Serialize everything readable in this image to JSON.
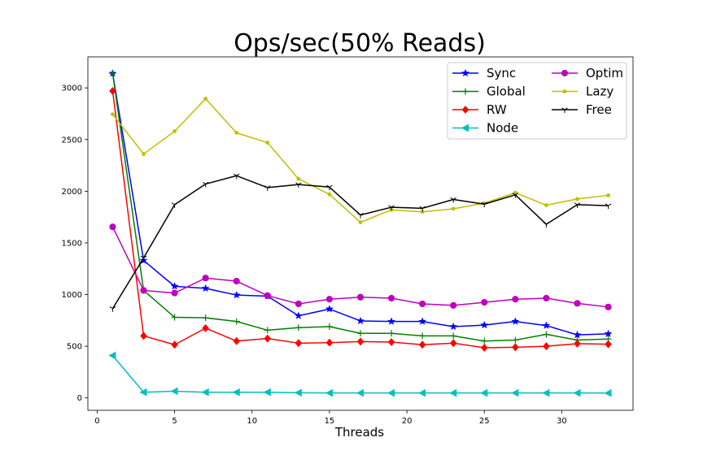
{
  "chart_data": {
    "type": "line",
    "title": "Ops/sec(50% Reads)",
    "xlabel": "Threads",
    "ylabel": "",
    "xlim": [
      -0.6,
      34.6
    ],
    "ylim": [
      -120,
      3300
    ],
    "xticks": [
      0,
      5,
      10,
      15,
      20,
      25,
      30
    ],
    "yticks": [
      0,
      500,
      1000,
      1500,
      2000,
      2500,
      3000
    ],
    "grid": false,
    "legend": {
      "position": "top-right",
      "columns": 2
    },
    "x": [
      1,
      3,
      5,
      7,
      9,
      11,
      13,
      15,
      17,
      19,
      21,
      23,
      25,
      27,
      29,
      31,
      33
    ],
    "series": [
      {
        "name": "Sync",
        "color": "#0000ff",
        "marker": "star",
        "values": [
          3140,
          1330,
          1080,
          1060,
          995,
          985,
          795,
          860,
          745,
          740,
          740,
          690,
          705,
          740,
          700,
          610,
          620
        ]
      },
      {
        "name": "Global",
        "color": "#008000",
        "marker": "plus",
        "values": [
          3140,
          1040,
          780,
          775,
          740,
          655,
          680,
          690,
          625,
          625,
          600,
          600,
          550,
          560,
          615,
          560,
          570
        ]
      },
      {
        "name": "RW",
        "color": "#ff0000",
        "marker": "diamond",
        "values": [
          2970,
          600,
          515,
          675,
          550,
          575,
          530,
          535,
          545,
          540,
          515,
          530,
          485,
          490,
          500,
          525,
          520
        ]
      },
      {
        "name": "Node",
        "color": "#00bfbf",
        "marker": "triangle-left",
        "values": [
          410,
          55,
          65,
          55,
          55,
          55,
          50,
          48,
          48,
          48,
          48,
          48,
          48,
          48,
          48,
          48,
          47
        ]
      },
      {
        "name": "Optim",
        "color": "#bf00bf",
        "marker": "circle",
        "values": [
          1655,
          1040,
          1015,
          1160,
          1130,
          990,
          910,
          955,
          975,
          965,
          910,
          895,
          925,
          955,
          965,
          915,
          880
        ]
      },
      {
        "name": "Lazy",
        "color": "#bfbf00",
        "marker": "point",
        "values": [
          2745,
          2360,
          2580,
          2895,
          2565,
          2470,
          2120,
          1970,
          1700,
          1820,
          1800,
          1830,
          1885,
          1985,
          1865,
          1925,
          1960
        ]
      },
      {
        "name": "Free",
        "color": "#000000",
        "marker": "tri-down",
        "values": [
          865,
          1355,
          1870,
          2070,
          2150,
          2035,
          2065,
          2040,
          1770,
          1845,
          1835,
          1920,
          1875,
          1965,
          1680,
          1870,
          1860
        ]
      }
    ]
  }
}
